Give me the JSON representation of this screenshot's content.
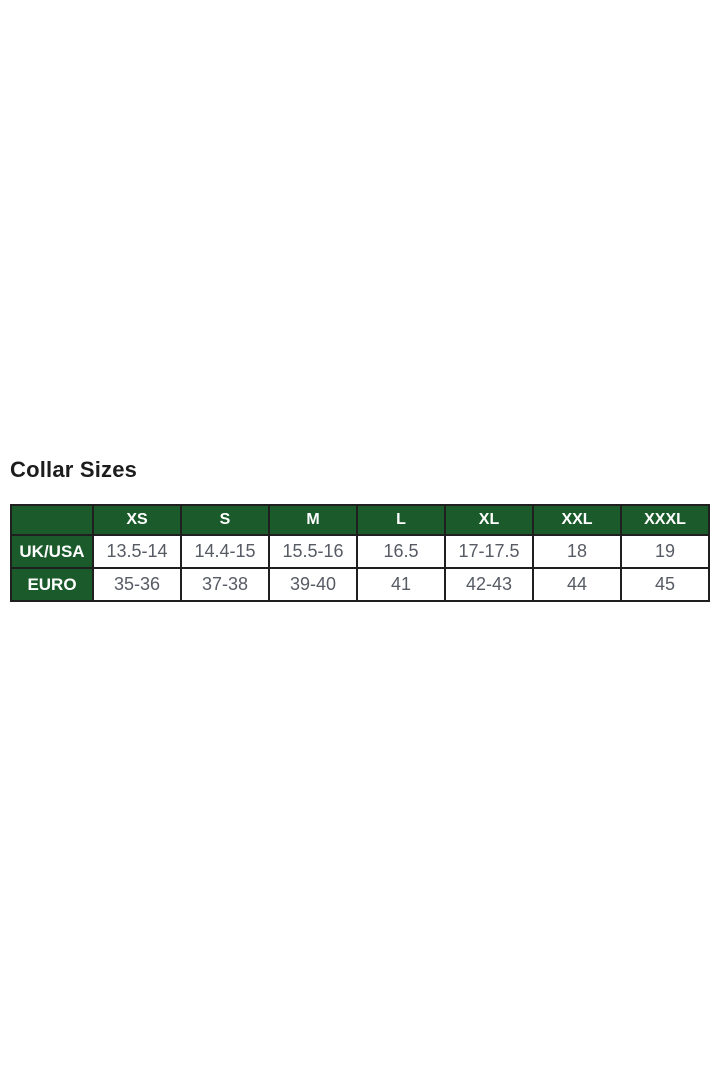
{
  "title": "Collar Sizes",
  "colors": {
    "header_green": "#1b5b2b",
    "border_black": "#1f1f1f",
    "header_text": "#ffffff",
    "cell_text": "#565b64",
    "title_text": "#1c1c1c",
    "page_background": "#ffffff"
  },
  "chart_data": {
    "type": "table",
    "title": "Collar Sizes",
    "legend_position": "none",
    "header": [
      "",
      "XS",
      "S",
      "M",
      "L",
      "XL",
      "XXL",
      "XXXL"
    ],
    "rows": [
      {
        "label": "UK/USA",
        "values": [
          "13.5-14",
          "14.4-15",
          "15.5-16",
          "16.5",
          "17-17.5",
          "18",
          "19"
        ]
      },
      {
        "label": "EURO",
        "values": [
          "35-36",
          "37-38",
          "39-40",
          "41",
          "42-43",
          "44",
          "45"
        ]
      }
    ]
  }
}
